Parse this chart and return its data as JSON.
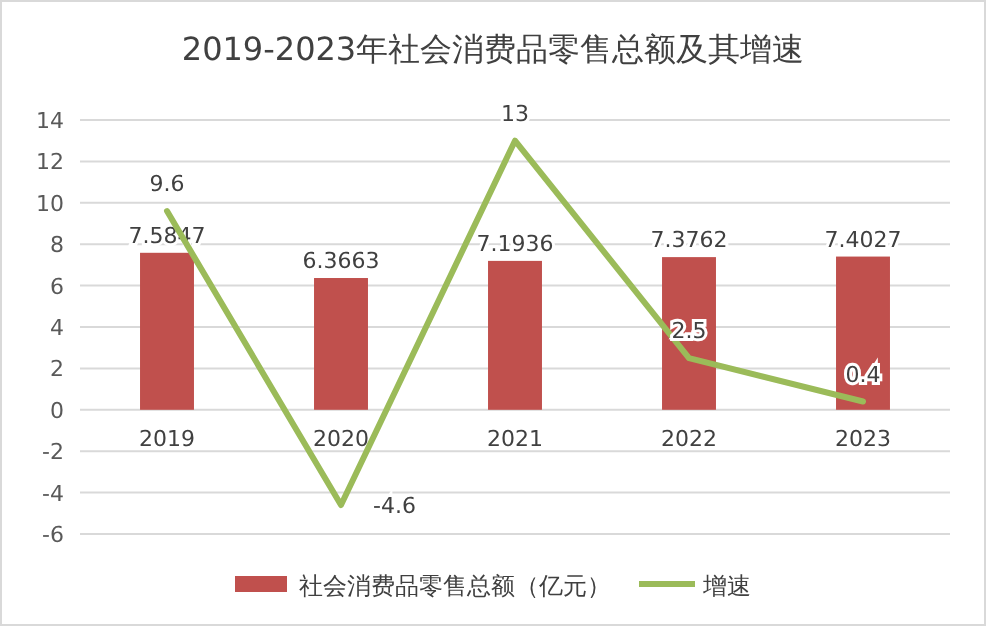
{
  "chart_data": {
    "type": "bar",
    "title": "2019-2023年社会消费品零售总额及其增速",
    "categories": [
      "2019",
      "2020",
      "2021",
      "2022",
      "2023"
    ],
    "series": [
      {
        "name": "社会消费品零售总额（亿元）",
        "color": "#c0504d",
        "values": [
          7.5847,
          6.3663,
          7.1936,
          7.3762,
          7.4027
        ]
      },
      {
        "name": "增速",
        "type": "line",
        "color": "#9bbb59",
        "values": [
          9.6,
          -4.6,
          13,
          2.5,
          0.4
        ]
      }
    ],
    "ylim": [
      -6,
      14
    ],
    "yticks": [
      -6,
      -4,
      -2,
      0,
      2,
      4,
      6,
      8,
      10,
      12,
      14
    ],
    "grid": "y",
    "legend": "bottom",
    "data_labels": true,
    "marker": "none",
    "line_style": "solid"
  }
}
